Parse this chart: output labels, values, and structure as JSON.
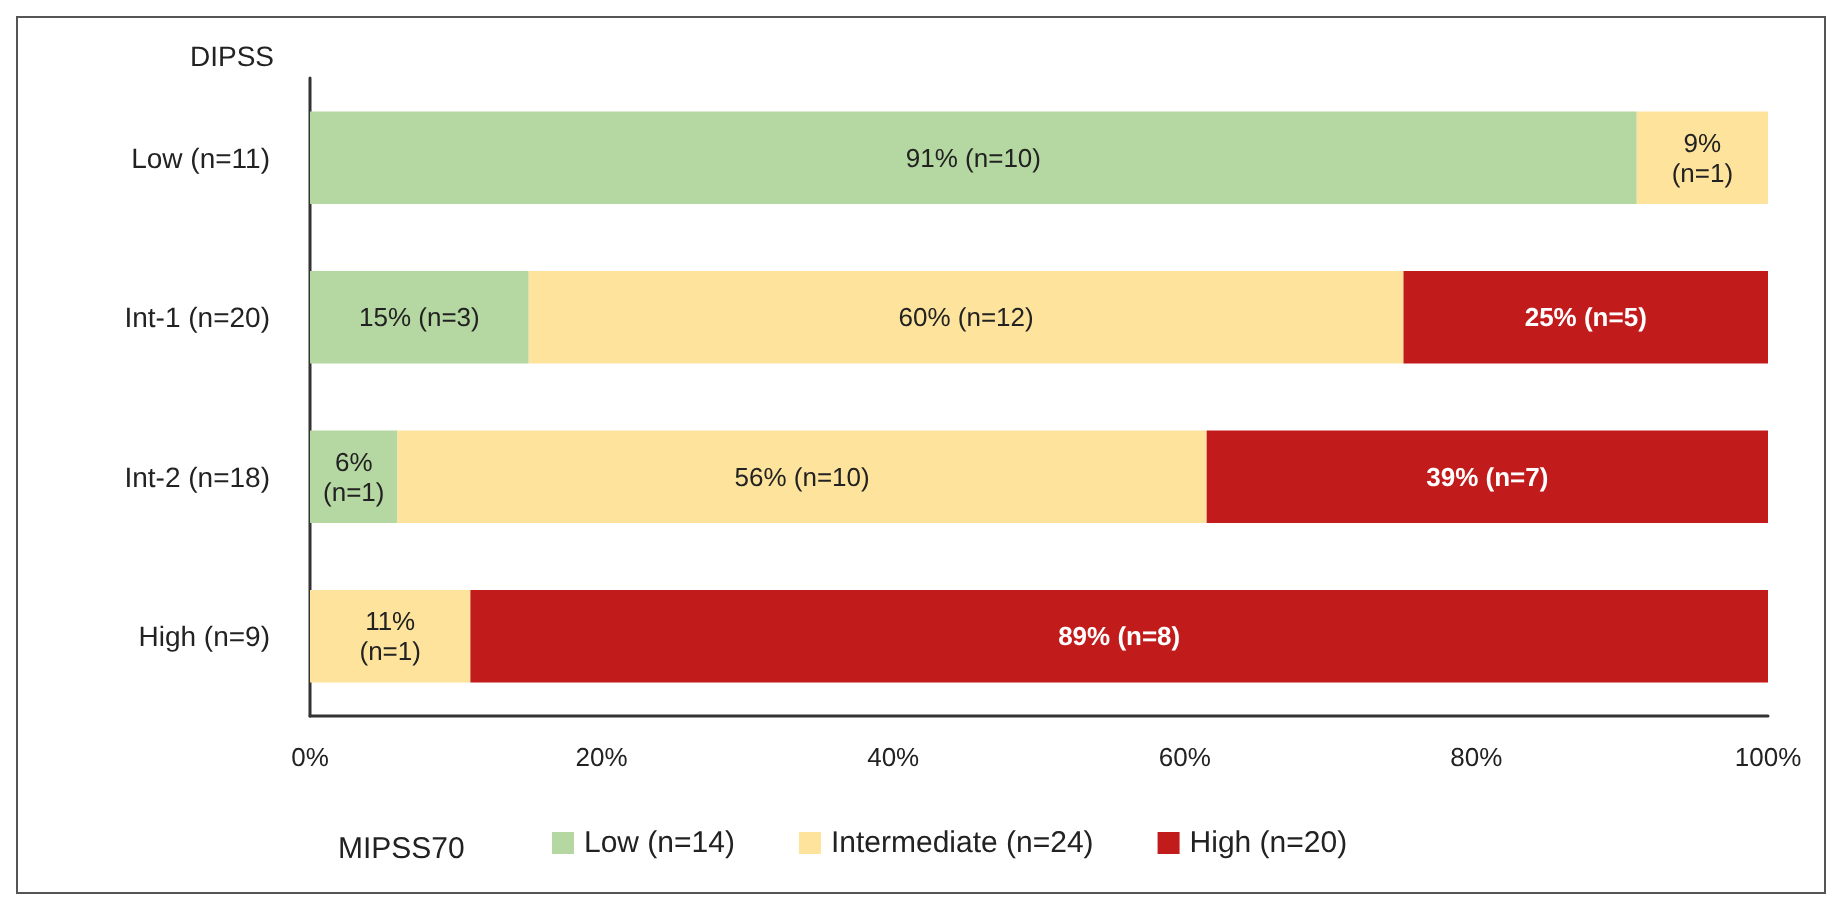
{
  "chart_data": {
    "type": "bar",
    "orientation": "horizontal",
    "stacked": true,
    "ylabel": "DIPSS",
    "legend_title": "MIPSS70",
    "categories": [
      "Low (n=11)",
      "Int-1 (n=20)",
      "Int-2 (n=18)",
      "High (n=9)"
    ],
    "series": [
      {
        "name": "Low (n=14)",
        "color": "#b5d7a2",
        "values": [
          91,
          15,
          6,
          null
        ],
        "value_labels": [
          "91% (n=10)",
          "15% (n=3)",
          "6% (n=1)",
          null
        ]
      },
      {
        "name": "Intermediate (n=24)",
        "color": "#fde39c",
        "values": [
          9,
          60,
          55.5,
          11
        ],
        "value_labels": [
          "9% (n=1)",
          "60% (n=12)",
          "56% (n=10)",
          "11% (n=1)"
        ]
      },
      {
        "name": "High (n=20)",
        "color": "#c21b1b",
        "values": [
          null,
          25,
          38.5,
          89
        ],
        "value_labels": [
          null,
          "25% (n=5)",
          "39% (n=7)",
          "89% (n=8)"
        ]
      }
    ],
    "xlim": [
      0,
      100
    ],
    "xticks": [
      {
        "value": 0,
        "label": "0%"
      },
      {
        "value": 20,
        "label": "20%"
      },
      {
        "value": 40,
        "label": "40%"
      },
      {
        "value": 60,
        "label": "60%"
      },
      {
        "value": 80,
        "label": "80%"
      },
      {
        "value": 100,
        "label": "100%"
      }
    ],
    "grid": false,
    "legend": "bottom"
  }
}
